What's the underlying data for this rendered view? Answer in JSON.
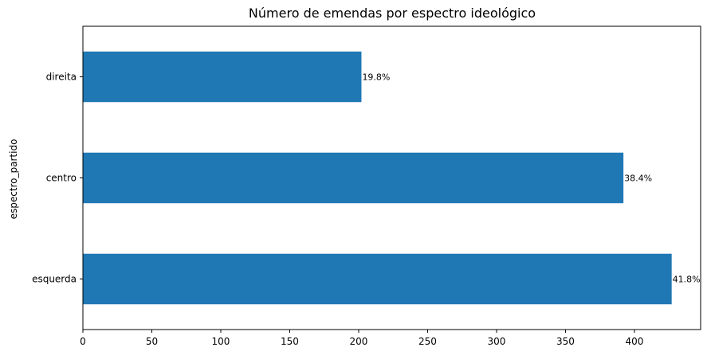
{
  "chart_data": {
    "type": "bar",
    "orientation": "horizontal",
    "title": "Número de emendas por espectro ideológico",
    "xlabel": "",
    "ylabel": "espectro_partido",
    "categories": [
      "esquerda",
      "centro",
      "direita"
    ],
    "values": [
      427,
      392,
      202
    ],
    "data_labels": [
      "41.8%",
      "38.4%",
      "19.8%"
    ],
    "xlim": [
      0,
      448
    ],
    "xticks": [
      0,
      50,
      100,
      150,
      200,
      250,
      300,
      350,
      400
    ],
    "xtick_labels": [
      "0",
      "50",
      "100",
      "150",
      "200",
      "250",
      "300",
      "350",
      "400"
    ],
    "bar_color": "#1f77b4",
    "grid": false,
    "legend": "none"
  }
}
